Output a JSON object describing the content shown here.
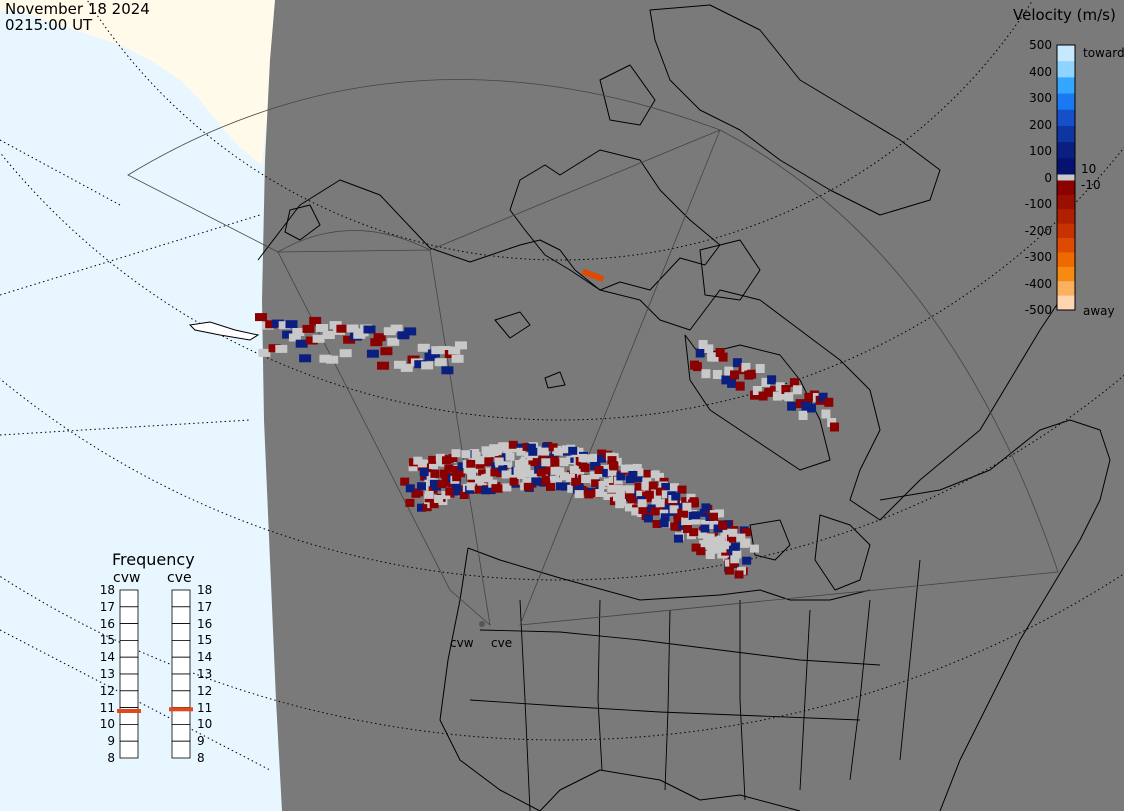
{
  "timestamp": {
    "date": "November 18 2024",
    "time": "0215:00 UT"
  },
  "velocity_scale": {
    "title": "Velocity (m/s)",
    "ticks": [
      "500",
      "400",
      "300",
      "200",
      "100",
      "0",
      "-100",
      "-200",
      "-300",
      "-400",
      "-500"
    ],
    "inner_ticks": [
      "10",
      "-10"
    ],
    "toward_label": "toward",
    "away_label": "away",
    "colors_toward": [
      "#c6e9ff",
      "#8fd3ff",
      "#33a6ff",
      "#1a78f0",
      "#1550c8",
      "#0f35a0",
      "#0a1f80",
      "#061270"
    ],
    "colors_away": [
      "#8b0000",
      "#9a1000",
      "#b02000",
      "#c83200",
      "#de4a00",
      "#ee6a00",
      "#f78a10",
      "#fbb060",
      "#ffd5b0"
    ],
    "colors_zero": "#c8c8c8"
  },
  "frequency": {
    "title": "Frequency",
    "radars": [
      {
        "name": "cvw",
        "value_mhz": 10.8
      },
      {
        "name": "cve",
        "value_mhz": 10.9
      }
    ],
    "ticks": [
      "18",
      "17",
      "16",
      "15",
      "14",
      "13",
      "12",
      "11",
      "10",
      "9",
      "8"
    ],
    "marker_color": "#e0481e"
  },
  "radar_sites": {
    "labels": [
      "cvw",
      "cve"
    ]
  },
  "colors": {
    "land": "#7a7a7a",
    "ocean": "#e8f6ff",
    "arctic_land": "#fffaea",
    "borders": "#000000",
    "ground_scatter": "#c8c8c8"
  }
}
